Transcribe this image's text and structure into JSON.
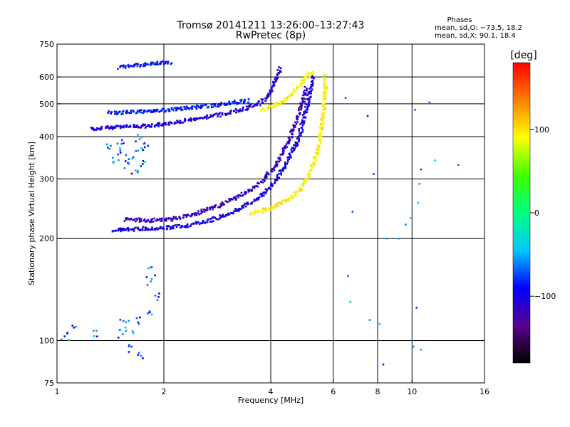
{
  "chart_data": {
    "type": "scatter",
    "title": "Tromsø 20141211 13:26:00–13:27:43",
    "subtitle": "RwPretec (8p)",
    "phases": {
      "heading": "Phases",
      "line_o": "mean, sd,O: −73.5, 18.2",
      "line_x": "mean, sd,X:  90.1, 18.4"
    },
    "xlabel": "Frequency [MHz]",
    "ylabel": "Stationary phase Virtual Height [km]",
    "x_scale": "log",
    "y_scale": "log",
    "xlim": [
      1,
      16
    ],
    "ylim": [
      75,
      750
    ],
    "x_ticks": [
      1,
      2,
      4,
      6,
      8,
      10,
      16
    ],
    "x_tick_labels": [
      "1",
      "2",
      "4",
      "6",
      "8",
      "10",
      "16"
    ],
    "x_grid": [
      2,
      4,
      6,
      8,
      10
    ],
    "y_ticks": [
      75,
      100,
      200,
      300,
      400,
      500,
      600,
      750
    ],
    "y_tick_labels": [
      "75",
      "100",
      "200",
      "300",
      "400",
      "500",
      "600",
      "750"
    ],
    "y_grid": [
      100,
      200,
      300,
      400,
      500,
      600
    ],
    "grid": true,
    "colorbar": {
      "label": "[deg]",
      "range": [
        -180,
        180
      ],
      "ticks": [
        100,
        0,
        -100
      ],
      "tick_labels": [
        "100",
        "0",
        "−100"
      ],
      "colors": [
        "#000000",
        "#5a0090",
        "#0000ff",
        "#00c8ff",
        "#00ff80",
        "#40ff00",
        "#ffff00",
        "#ff8000",
        "#ff0000"
      ]
    },
    "series": [
      {
        "trace": "o-lower",
        "phase": -100,
        "points": [
          [
            1.45,
            212
          ],
          [
            1.6,
            213
          ],
          [
            1.8,
            214
          ],
          [
            2.0,
            215
          ],
          [
            2.3,
            218
          ],
          [
            2.6,
            224
          ],
          [
            2.9,
            232
          ],
          [
            3.2,
            242
          ],
          [
            3.5,
            255
          ],
          [
            3.8,
            270
          ],
          [
            4.0,
            285
          ],
          [
            4.2,
            305
          ],
          [
            4.4,
            330
          ],
          [
            4.6,
            360
          ],
          [
            4.8,
            395
          ],
          [
            4.9,
            430
          ],
          [
            5.0,
            470
          ],
          [
            5.1,
            510
          ],
          [
            5.2,
            560
          ],
          [
            5.3,
            610
          ]
        ]
      },
      {
        "trace": "o-lower-echo",
        "phase": -115,
        "points": [
          [
            1.55,
            228
          ],
          [
            1.8,
            226
          ],
          [
            2.1,
            228
          ],
          [
            2.4,
            235
          ],
          [
            2.8,
            248
          ],
          [
            3.1,
            260
          ],
          [
            3.5,
            278
          ],
          [
            3.8,
            298
          ],
          [
            4.1,
            325
          ],
          [
            4.3,
            355
          ],
          [
            4.5,
            390
          ],
          [
            4.7,
            440
          ],
          [
            4.9,
            500
          ],
          [
            5.05,
            560
          ]
        ]
      },
      {
        "trace": "o-upper",
        "phase": -105,
        "points": [
          [
            1.25,
            422
          ],
          [
            1.4,
            425
          ],
          [
            1.6,
            428
          ],
          [
            1.8,
            430
          ],
          [
            2.0,
            436
          ],
          [
            2.2,
            443
          ],
          [
            2.5,
            452
          ],
          [
            2.8,
            462
          ],
          [
            3.1,
            472
          ],
          [
            3.4,
            485
          ],
          [
            3.7,
            500
          ],
          [
            3.9,
            520
          ],
          [
            4.0,
            545
          ],
          [
            4.1,
            575
          ],
          [
            4.2,
            610
          ],
          [
            4.25,
            640
          ]
        ]
      },
      {
        "trace": "o-upper-echo",
        "phase": -85,
        "points": [
          [
            1.4,
            470
          ],
          [
            1.6,
            472
          ],
          [
            1.8,
            475
          ],
          [
            2.0,
            478
          ],
          [
            2.3,
            485
          ],
          [
            2.6,
            490
          ],
          [
            2.9,
            498
          ],
          [
            3.2,
            505
          ],
          [
            3.5,
            512
          ]
        ]
      },
      {
        "trace": "x-lower",
        "phase": 95,
        "points": [
          [
            3.5,
            238
          ],
          [
            3.8,
            242
          ],
          [
            4.1,
            248
          ],
          [
            4.4,
            258
          ],
          [
            4.7,
            270
          ],
          [
            4.9,
            285
          ],
          [
            5.1,
            305
          ],
          [
            5.3,
            335
          ],
          [
            5.45,
            370
          ],
          [
            5.55,
            410
          ],
          [
            5.6,
            455
          ],
          [
            5.65,
            500
          ],
          [
            5.7,
            560
          ],
          [
            5.7,
            610
          ]
        ]
      },
      {
        "trace": "x-upper",
        "phase": 90,
        "points": [
          [
            3.8,
            480
          ],
          [
            4.0,
            490
          ],
          [
            4.3,
            505
          ],
          [
            4.5,
            525
          ],
          [
            4.7,
            550
          ],
          [
            4.9,
            580
          ],
          [
            5.1,
            610
          ],
          [
            5.3,
            625
          ]
        ]
      },
      {
        "trace": "o-blob",
        "phase": -70,
        "points": [
          [
            1.4,
            370
          ],
          [
            1.5,
            360
          ],
          [
            1.6,
            350
          ],
          [
            1.7,
            365
          ],
          [
            1.8,
            375
          ],
          [
            1.45,
            340
          ],
          [
            1.55,
            330
          ],
          [
            1.65,
            320
          ],
          [
            1.75,
            330
          ],
          [
            1.5,
            385
          ],
          [
            1.7,
            395
          ]
        ]
      },
      {
        "trace": "o-low",
        "phase": -75,
        "points": [
          [
            1.05,
            103
          ],
          [
            1.1,
            108
          ],
          [
            1.3,
            104
          ],
          [
            1.5,
            105
          ],
          [
            1.55,
            112
          ],
          [
            1.6,
            108
          ],
          [
            1.7,
            115
          ],
          [
            1.85,
            120
          ],
          [
            1.9,
            135
          ],
          [
            1.6,
            95
          ],
          [
            1.7,
            90
          ],
          [
            1.8,
            150
          ],
          [
            1.85,
            160
          ]
        ]
      },
      {
        "trace": "o-top",
        "phase": -90,
        "points": [
          [
            1.5,
            640
          ],
          [
            1.6,
            645
          ],
          [
            1.7,
            650
          ],
          [
            1.8,
            655
          ],
          [
            2.0,
            660
          ],
          [
            2.1,
            658
          ]
        ]
      },
      {
        "trace": "scatter",
        "phase": -60,
        "points": [
          [
            6.5,
            520
          ],
          [
            6.8,
            240
          ],
          [
            7.5,
            460
          ],
          [
            7.8,
            310
          ],
          [
            9.2,
            200
          ],
          [
            10.2,
            480
          ],
          [
            10.6,
            320
          ],
          [
            11.2,
            505
          ],
          [
            11.6,
            340
          ],
          [
            13.5,
            330
          ],
          [
            6.6,
            155
          ],
          [
            6.7,
            130
          ],
          [
            7.6,
            115
          ],
          [
            8.1,
            112
          ],
          [
            10.3,
            125
          ],
          [
            9.6,
            220
          ],
          [
            9.9,
            230
          ],
          [
            10.5,
            290
          ],
          [
            10.4,
            255
          ],
          [
            8.5,
            200
          ],
          [
            10.1,
            96
          ],
          [
            10.6,
            94
          ],
          [
            8.3,
            85
          ]
        ]
      }
    ]
  }
}
